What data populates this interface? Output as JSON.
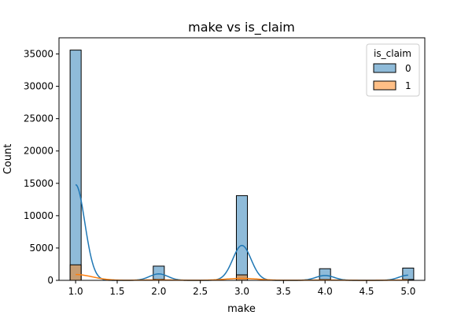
{
  "chart_data": {
    "type": "histogram",
    "title": "make vs is_claim",
    "xlabel": "make",
    "ylabel": "Count",
    "xlim": [
      0.8,
      5.2
    ],
    "ylim": [
      0,
      37500
    ],
    "x_ticks": [
      1.0,
      1.5,
      2.0,
      2.5,
      3.0,
      3.5,
      4.0,
      4.5,
      5.0
    ],
    "x_tick_labels": [
      "1.0",
      "1.5",
      "2.0",
      "2.5",
      "3.0",
      "3.5",
      "4.0",
      "4.5",
      "5.0"
    ],
    "y_ticks": [
      0,
      5000,
      10000,
      15000,
      20000,
      25000,
      30000,
      35000
    ],
    "y_tick_labels": [
      "0",
      "5000",
      "10000",
      "15000",
      "20000",
      "25000",
      "30000",
      "35000"
    ],
    "bin_width": 0.133,
    "legend": {
      "title": "is_claim",
      "position": "top-right"
    },
    "grid": false,
    "series": [
      {
        "name": "0",
        "color": "#1f77b4",
        "bars": [
          {
            "x": 1.0,
            "count": 35600
          },
          {
            "x": 2.0,
            "count": 2200
          },
          {
            "x": 3.0,
            "count": 13100
          },
          {
            "x": 4.0,
            "count": 1800
          },
          {
            "x": 5.0,
            "count": 1900
          }
        ],
        "kde_peaks": [
          {
            "x": 1.0,
            "y": 14800
          },
          {
            "x": 2.0,
            "y": 1000
          },
          {
            "x": 3.0,
            "y": 5400
          },
          {
            "x": 4.0,
            "y": 750
          },
          {
            "x": 5.0,
            "y": 800
          }
        ],
        "kde_sigma": 0.11
      },
      {
        "name": "1",
        "color": "#ff7f0e",
        "bars": [
          {
            "x": 1.0,
            "count": 2400
          },
          {
            "x": 2.0,
            "count": 150
          },
          {
            "x": 3.0,
            "count": 850
          },
          {
            "x": 4.0,
            "count": 120
          },
          {
            "x": 5.0,
            "count": 130
          }
        ],
        "kde_peaks": [
          {
            "x": 1.0,
            "y": 900
          },
          {
            "x": 2.0,
            "y": 70
          },
          {
            "x": 3.0,
            "y": 300
          },
          {
            "x": 4.0,
            "y": 50
          },
          {
            "x": 5.0,
            "y": 50
          }
        ],
        "kde_sigma": 0.2
      }
    ]
  }
}
